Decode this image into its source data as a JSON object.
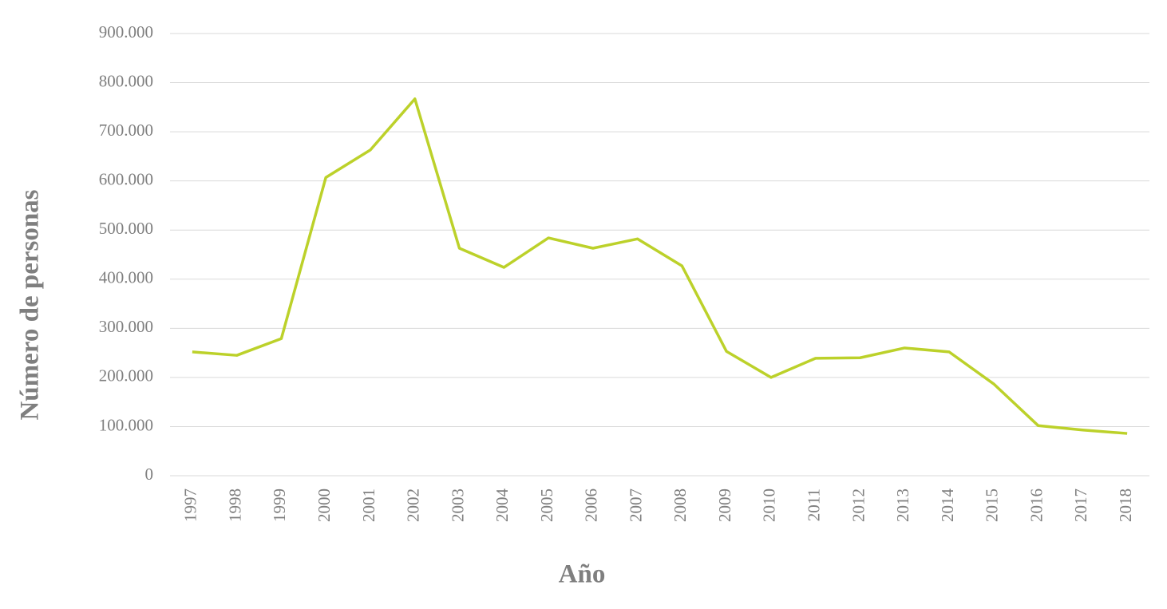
{
  "chart_data": {
    "type": "line",
    "x_label": "Año",
    "y_label": "Número de personas",
    "categories": [
      "1997",
      "1998",
      "1999",
      "2000",
      "2001",
      "2002",
      "2003",
      "2004",
      "2005",
      "2006",
      "2007",
      "2008",
      "2009",
      "2010",
      "2011",
      "2012",
      "2013",
      "2014",
      "2015",
      "2016",
      "2017",
      "2018"
    ],
    "values": [
      252000,
      245000,
      279000,
      607000,
      663000,
      767000,
      463000,
      424000,
      484000,
      463000,
      482000,
      427000,
      253000,
      200000,
      239000,
      240000,
      260000,
      252000,
      187000,
      102000,
      93000,
      86000
    ],
    "color": "#bcd12a",
    "ylim": [
      0,
      900000
    ],
    "yticks": [
      0,
      {
        "value": 100000,
        "label": "100.000"
      },
      {
        "value": 200000,
        "label": "200.000"
      },
      {
        "value": 300000,
        "label": "300.000"
      },
      {
        "value": 400000,
        "label": "400.000"
      },
      {
        "value": 500000,
        "label": "500.000"
      },
      {
        "value": 600000,
        "label": "600.000"
      },
      {
        "value": 700000,
        "label": "700.000"
      },
      {
        "value": 800000,
        "label": "800.000"
      },
      {
        "value": 900000,
        "label": "900.000"
      }
    ],
    "grid": true
  }
}
